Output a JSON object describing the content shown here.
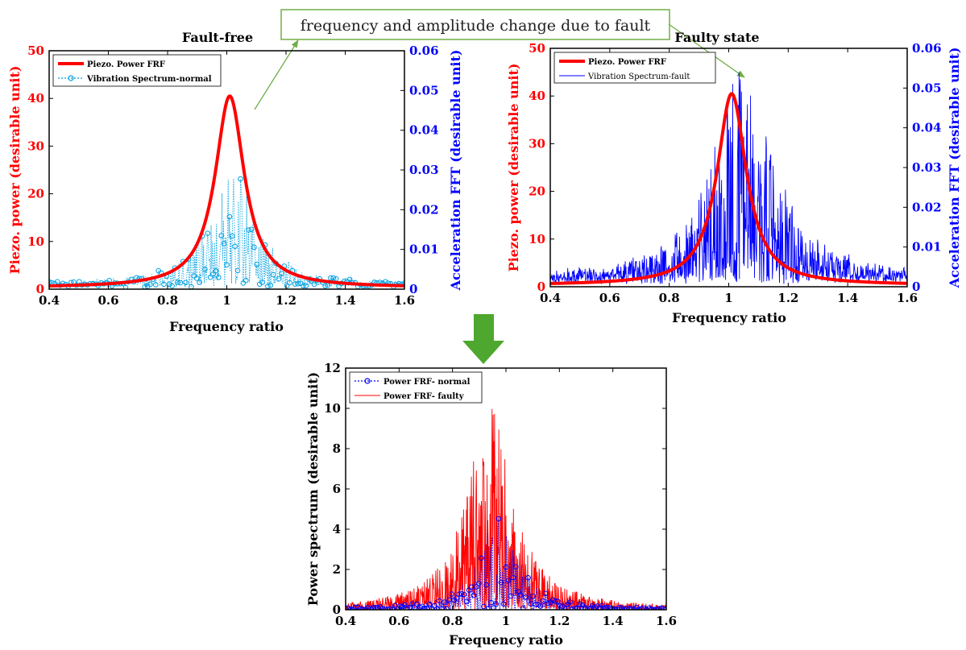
{
  "annotation": {
    "text": "frequency and amplitude change due to fault",
    "box_stroke": "#70ad47",
    "arrow_color": "#70ad47"
  },
  "down_arrow": {
    "color": "#4ea72e"
  },
  "chart_data": [
    {
      "id": "fault-free",
      "type": "line",
      "title": "Fault-free",
      "xlabel": "Frequency ratio",
      "ylabel_left": "Piezo. power (desirable unit)",
      "ylabel_right": "Acceleration FFT (desirable unit)",
      "xlim": [
        0.4,
        1.6
      ],
      "ylim_left": [
        0,
        50
      ],
      "ylim_right": [
        0,
        0.06
      ],
      "xticks": [
        "0.4",
        "0.6",
        "0.8",
        "1",
        "1.2",
        "1.4",
        "1.6"
      ],
      "yticks_left": [
        "0",
        "10",
        "20",
        "30",
        "40",
        "50"
      ],
      "yticks_right": [
        "0",
        "0.01",
        "0.02",
        "0.03",
        "0.04",
        "0.05",
        "0.06"
      ],
      "left_axis_color": "#ff0000",
      "right_axis_color": "#0000ff",
      "legend_position": "top-left",
      "series": [
        {
          "name": "Piezo. Power FRF",
          "axis": "left",
          "color": "#ff0000",
          "style": "thick-solid",
          "peak_x": 1.01,
          "peak_y": 40.5,
          "half_width": 0.06,
          "baseline": 0.3
        },
        {
          "name": "Vibration Spectrum-normal",
          "axis": "right",
          "color": "#00a0e0",
          "style": "dotted-circle",
          "peak_x": 1.02,
          "peak_y": 0.03,
          "half_width": 0.09,
          "baseline": 0.0012
        }
      ]
    },
    {
      "id": "faulty-state",
      "type": "line",
      "title": "Faulty state",
      "xlabel": "Frequency ratio",
      "ylabel_left": "Piezo. power (desirable unit)",
      "ylabel_right": "Acceleration FFT (desirable unit)",
      "xlim": [
        0.4,
        1.6
      ],
      "ylim_left": [
        0,
        50
      ],
      "ylim_right": [
        0,
        0.06
      ],
      "xticks": [
        "0.4",
        "0.6",
        "0.8",
        "1",
        "1.2",
        "1.4",
        "1.6"
      ],
      "yticks_left": [
        "0",
        "10",
        "20",
        "30",
        "40",
        "50"
      ],
      "yticks_right": [
        "0",
        "0.01",
        "0.02",
        "0.03",
        "0.04",
        "0.05",
        "0.06"
      ],
      "left_axis_color": "#ff0000",
      "right_axis_color": "#0000ff",
      "legend_position": "top-left",
      "series": [
        {
          "name": "Piezo. Power FRF",
          "axis": "left",
          "color": "#ff0000",
          "style": "thick-solid",
          "peak_x": 1.01,
          "peak_y": 40.5,
          "half_width": 0.06,
          "baseline": 0.3
        },
        {
          "name": "Vibration Spectrum-fault",
          "axis": "right",
          "color": "#0000ff",
          "style": "thin-solid",
          "peak_x": 1.05,
          "peak_y": 0.055,
          "half_width": 0.12,
          "baseline": 0.002
        }
      ]
    },
    {
      "id": "power-spectrum",
      "type": "line",
      "title": "",
      "xlabel": "Frequency ratio",
      "ylabel_left": "Power spectrum (desirable unit)",
      "xlim": [
        0.4,
        1.6
      ],
      "ylim_left": [
        0,
        12
      ],
      "xticks": [
        "0.4",
        "0.6",
        "0.8",
        "1",
        "1.2",
        "1.4",
        "1.6"
      ],
      "yticks_left": [
        "0",
        "2",
        "4",
        "6",
        "8",
        "10",
        "12"
      ],
      "legend_position": "top-left",
      "series": [
        {
          "name": "Power FRF- normal",
          "axis": "left",
          "color": "#0000ff",
          "style": "dotted-circle",
          "peak_x": 0.97,
          "peak_y": 4.9,
          "half_width": 0.08,
          "baseline": 0.02
        },
        {
          "name": "Power FRF- faulty",
          "axis": "left",
          "color": "#ff0000",
          "style": "thin-solid",
          "peak_x": 0.94,
          "peak_y": 10.2,
          "half_width": 0.1,
          "baseline": 0.02
        }
      ]
    }
  ]
}
